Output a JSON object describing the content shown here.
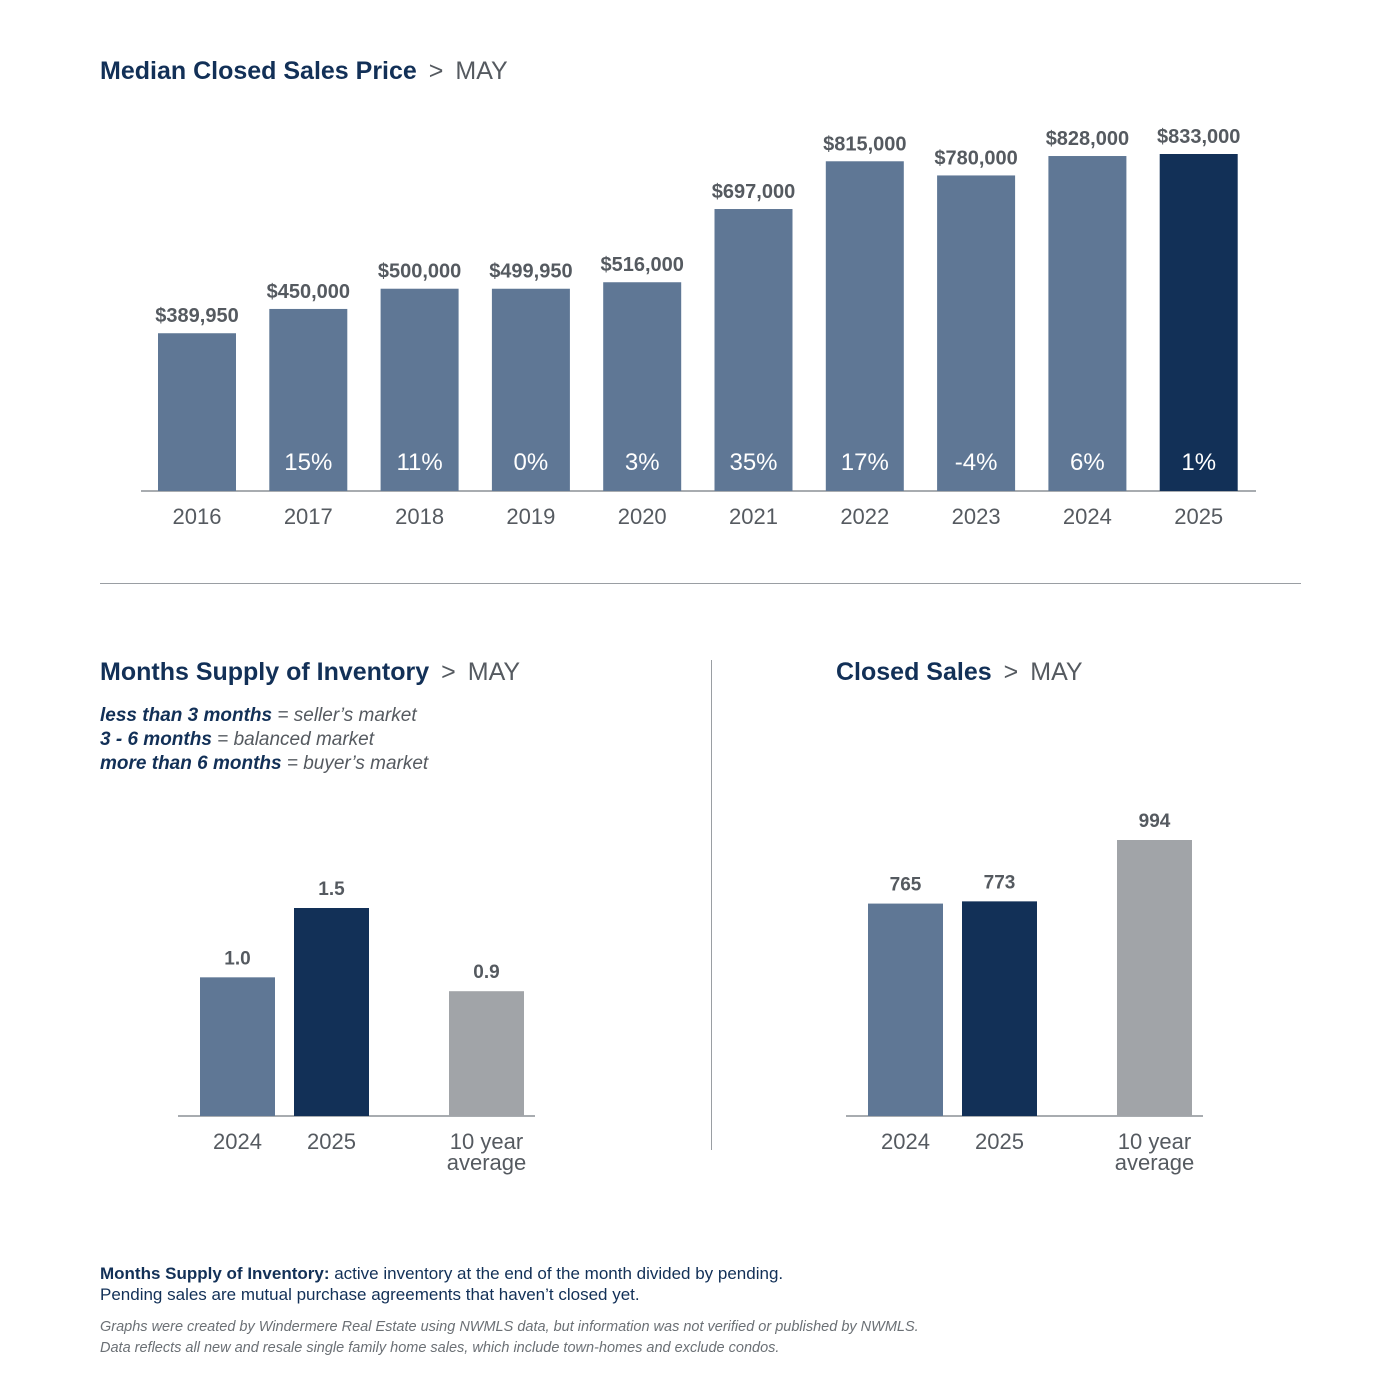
{
  "page": {
    "separator": ">",
    "month": "MAY"
  },
  "colors": {
    "bar": "#5f7795",
    "highlight": "#123057",
    "average": "#a1a4a8",
    "title": "#123057",
    "text": "#555a60",
    "axis": "#8c9095"
  },
  "chart_data": [
    {
      "id": "median-price",
      "type": "bar",
      "title": "Median Closed Sales Price",
      "categories": [
        "2016",
        "2017",
        "2018",
        "2019",
        "2020",
        "2021",
        "2022",
        "2023",
        "2024",
        "2025"
      ],
      "values": [
        389950,
        450000,
        500000,
        499950,
        516000,
        697000,
        815000,
        780000,
        828000,
        833000
      ],
      "value_labels": [
        "$389,950",
        "$450,000",
        "$500,000",
        "$499,950",
        "$516,000",
        "$697,000",
        "$815,000",
        "$780,000",
        "$828,000",
        "$833,000"
      ],
      "pct_change_labels": [
        "",
        "15%",
        "11%",
        "0%",
        "3%",
        "35%",
        "17%",
        "-4%",
        "6%",
        "1%"
      ],
      "highlight_index": 9,
      "ylim": [
        0,
        850000
      ],
      "xlabel": "",
      "ylabel": "",
      "grid": false
    },
    {
      "id": "months-supply",
      "type": "bar",
      "title": "Months Supply of Inventory",
      "categories": [
        "2024",
        "2025",
        "10 year average"
      ],
      "category_lines": [
        [
          "2024"
        ],
        [
          "2025"
        ],
        [
          "10 year",
          "average"
        ]
      ],
      "values": [
        1.0,
        1.5,
        0.9
      ],
      "value_labels": [
        "1.0",
        "1.5",
        "0.9"
      ],
      "bar_roles": [
        "prior",
        "current",
        "average"
      ],
      "ylim": [
        0,
        2.2
      ],
      "xlabel": "",
      "ylabel": "",
      "grid": false
    },
    {
      "id": "closed-sales",
      "type": "bar",
      "title": "Closed Sales",
      "categories": [
        "2024",
        "2025",
        "10 year average"
      ],
      "category_lines": [
        [
          "2024"
        ],
        [
          "2025"
        ],
        [
          "10 year",
          "average"
        ]
      ],
      "values": [
        765,
        773,
        994
      ],
      "value_labels": [
        "765",
        "773",
        "994"
      ],
      "bar_roles": [
        "prior",
        "current",
        "average"
      ],
      "ylim": [
        0,
        1085
      ],
      "xlabel": "",
      "ylabel": "",
      "grid": false
    }
  ],
  "legend": {
    "items": [
      {
        "key": "less than 3 months",
        "eq": " = ",
        "desc": "seller’s market"
      },
      {
        "key": "3 - 6 months",
        "eq": " = ",
        "desc": "balanced market"
      },
      {
        "key": "more than 6 months",
        "eq": " = ",
        "desc": "buyer’s market"
      }
    ]
  },
  "footnote": {
    "term": "Months Supply of Inventory:",
    "definition": " active inventory at the end of the month divided by pending.",
    "line2": "Pending sales are mutual purchase agreements that haven’t closed yet."
  },
  "disclaimer": {
    "line1": "Graphs were created by Windermere Real Estate using NWMLS data, but information was not verified or published by NWMLS.",
    "line2": "Data reflects all new and resale single family home sales, which include town-homes and exclude condos."
  }
}
